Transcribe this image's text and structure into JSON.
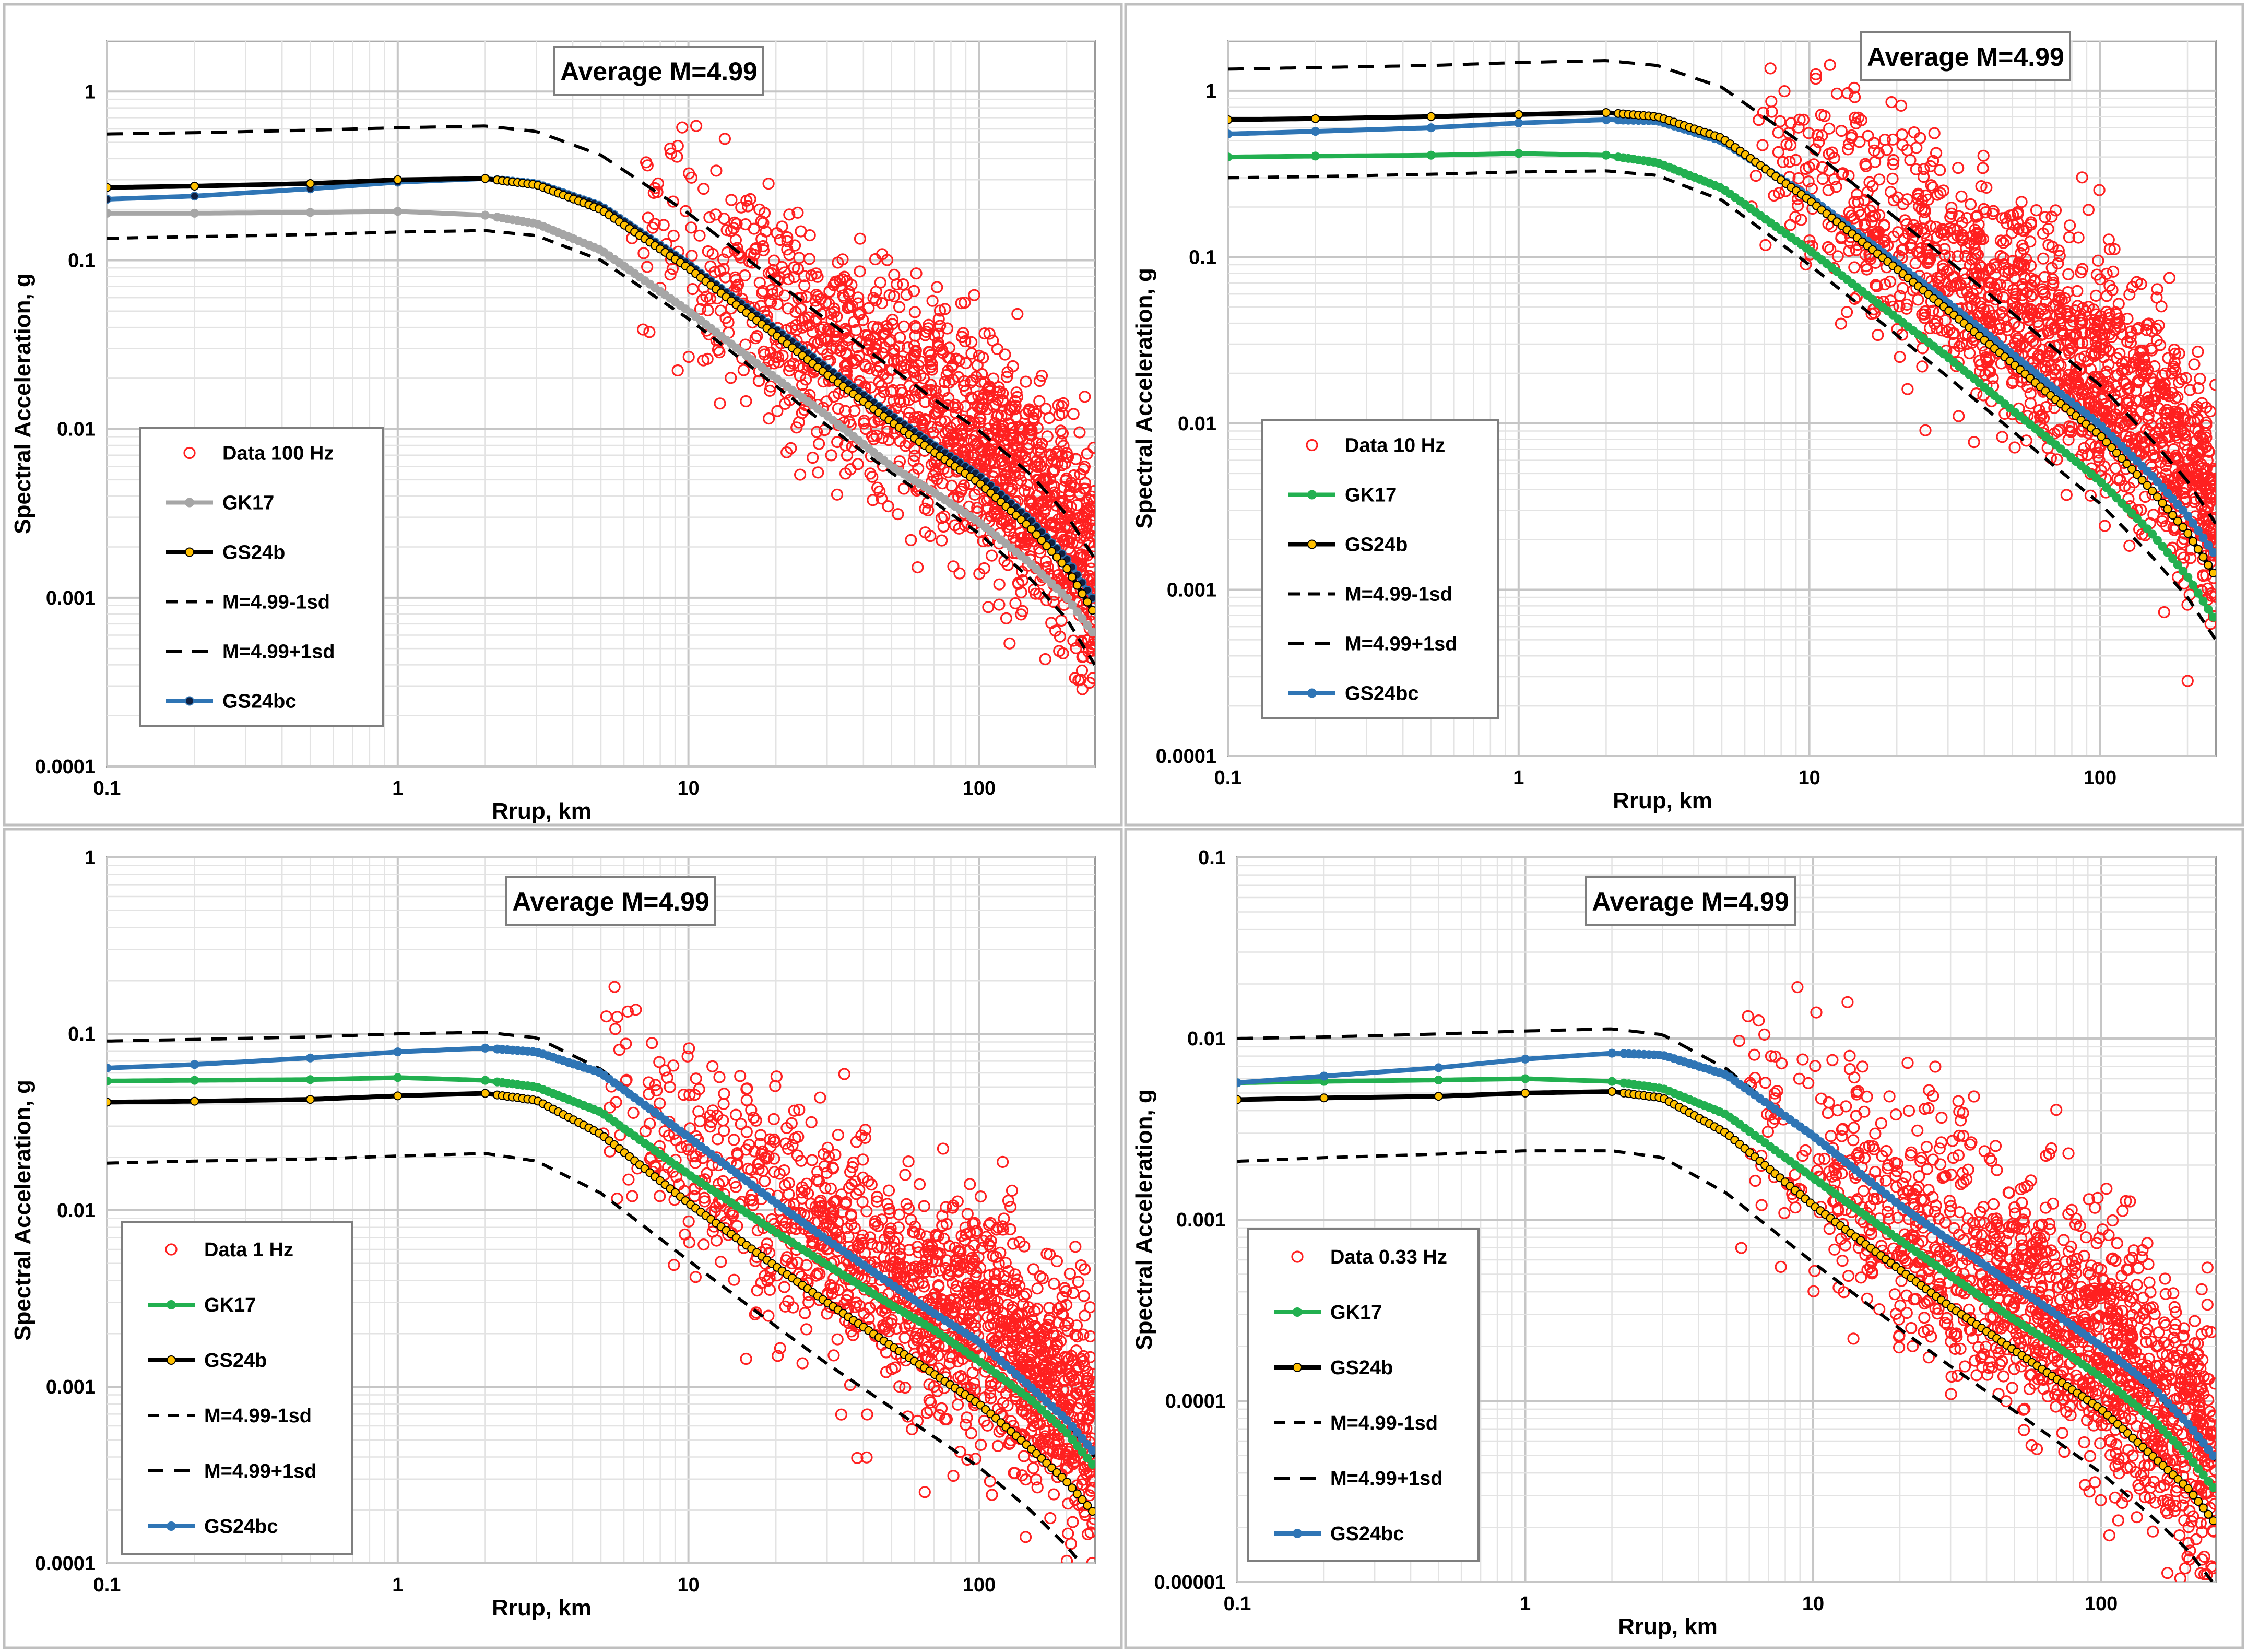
{
  "figure": {
    "title": "Spectral acceleration versus rupture distance, four frequencies"
  },
  "colors": {
    "data": "#ff2020",
    "GK17_100": "#a6a6a6",
    "GK17": "#22b050",
    "GS24b": "#000000",
    "GS24b_marker": "#ffc000",
    "GS24bc": "#2f75b5",
    "sd": "#000000"
  },
  "chart_data": [
    {
      "type": "scatter",
      "title": "Average M=4.99",
      "xlabel": "Rrup, km",
      "ylabel": "Spectral Acceleration, g",
      "xscale": "log",
      "yscale": "log",
      "xlim": [
        0.1,
        250
      ],
      "ylim": [
        0.0001,
        2
      ],
      "x_tick_labels": [
        "0.1",
        "1",
        "10",
        "100"
      ],
      "y_tick_labels": [
        "0.0001",
        "0.001",
        "0.01",
        "0.1",
        "1"
      ],
      "legend_position": "lower-left",
      "legend": [
        "Data 100 Hz",
        "GK17",
        "GS24b",
        "M=4.99-1sd",
        "M=4.99+1sd",
        "GS24bc"
      ],
      "series": [
        {
          "name": "Data 100 Hz",
          "style": "open-circle",
          "color": "#ff2020",
          "n_points": 1350,
          "description_points": {
            "x_range": [
              6,
              250
            ],
            "trend_center_at_10km": 0.12,
            "trend_center_at_100km": 0.008,
            "scatter_sigma_log10": 0.35
          }
        },
        {
          "name": "GK17",
          "style": "line-marker",
          "color": "#a6a6a6",
          "x": [
            0.1,
            0.2,
            0.5,
            1,
            2,
            3,
            5,
            10,
            20,
            30,
            50,
            70,
            100,
            150,
            200,
            250
          ],
          "y": [
            0.19,
            0.19,
            0.192,
            0.195,
            0.185,
            0.165,
            0.115,
            0.05,
            0.02,
            0.012,
            0.006,
            0.0042,
            0.0028,
            0.0016,
            0.001,
            0.0006
          ]
        },
        {
          "name": "GS24b",
          "style": "line-marker",
          "color": "#000000",
          "marker": "#ffc000",
          "x": [
            0.1,
            0.2,
            0.5,
            1,
            2,
            3,
            5,
            10,
            20,
            30,
            50,
            70,
            100,
            150,
            200,
            250
          ],
          "y": [
            0.27,
            0.275,
            0.285,
            0.3,
            0.305,
            0.28,
            0.2,
            0.09,
            0.036,
            0.021,
            0.011,
            0.0073,
            0.0048,
            0.0026,
            0.0015,
            0.0008
          ]
        },
        {
          "name": "M=4.99-1sd",
          "style": "dash",
          "color": "#000000",
          "x": [
            0.1,
            0.2,
            0.5,
            1,
            2,
            3,
            5,
            10,
            20,
            30,
            50,
            70,
            100,
            150,
            200,
            250
          ],
          "y": [
            0.135,
            0.138,
            0.142,
            0.147,
            0.15,
            0.14,
            0.1,
            0.045,
            0.018,
            0.0105,
            0.0055,
            0.0037,
            0.0024,
            0.0013,
            0.00075,
            0.0004
          ]
        },
        {
          "name": "M=4.99+1sd",
          "style": "dash",
          "color": "#000000",
          "x": [
            0.1,
            0.2,
            0.5,
            1,
            2,
            3,
            5,
            10,
            20,
            30,
            50,
            70,
            100,
            150,
            200,
            250
          ],
          "y": [
            0.56,
            0.57,
            0.59,
            0.61,
            0.625,
            0.58,
            0.42,
            0.19,
            0.075,
            0.044,
            0.023,
            0.015,
            0.0098,
            0.0054,
            0.0031,
            0.0017
          ]
        },
        {
          "name": "GS24bc",
          "style": "line-marker",
          "color": "#2f75b5",
          "marker": "#102040",
          "x": [
            0.1,
            0.2,
            0.5,
            1,
            2,
            3,
            5,
            10,
            20,
            30,
            50,
            70,
            100,
            150,
            200,
            250
          ],
          "y": [
            0.23,
            0.24,
            0.265,
            0.29,
            0.305,
            0.285,
            0.21,
            0.095,
            0.039,
            0.023,
            0.012,
            0.008,
            0.0053,
            0.0029,
            0.0017,
            0.00095
          ]
        }
      ]
    },
    {
      "type": "scatter",
      "title": "Average M=4.99",
      "xlabel": "Rrup, km",
      "ylabel": "Spectral Acceleration, g",
      "xscale": "log",
      "yscale": "log",
      "xlim": [
        0.1,
        250
      ],
      "ylim": [
        0.0001,
        2
      ],
      "x_tick_labels": [
        "0.1",
        "1",
        "10",
        "100"
      ],
      "y_tick_labels": [
        "0.0001",
        "0.001",
        "0.01",
        "0.1",
        "1"
      ],
      "legend_position": "lower-left",
      "legend": [
        "Data 10 Hz",
        "GK17",
        "GS24b",
        "M=4.99-1sd",
        "M=4.99+1sd",
        "GS24bc"
      ],
      "series": [
        {
          "name": "Data 10 Hz",
          "style": "open-circle",
          "color": "#ff2020",
          "n_points": 1400,
          "description_points": {
            "x_range": [
              6,
              250
            ],
            "trend_center_at_10km": 0.3,
            "trend_center_at_100km": 0.02,
            "scatter_sigma_log10": 0.35
          }
        },
        {
          "name": "GK17",
          "style": "line-marker",
          "color": "#22b050",
          "x": [
            0.1,
            0.2,
            0.5,
            1,
            2,
            3,
            5,
            10,
            20,
            30,
            50,
            70,
            100,
            150,
            200,
            250
          ],
          "y": [
            0.4,
            0.405,
            0.41,
            0.42,
            0.41,
            0.37,
            0.26,
            0.11,
            0.043,
            0.025,
            0.012,
            0.0075,
            0.0045,
            0.0022,
            0.0012,
            0.00065
          ]
        },
        {
          "name": "GS24b",
          "style": "line-marker",
          "color": "#000000",
          "marker": "#ffc000",
          "x": [
            0.1,
            0.2,
            0.5,
            1,
            2,
            3,
            5,
            10,
            20,
            30,
            50,
            70,
            100,
            150,
            200,
            250
          ],
          "y": [
            0.67,
            0.68,
            0.7,
            0.72,
            0.74,
            0.7,
            0.52,
            0.22,
            0.085,
            0.048,
            0.023,
            0.014,
            0.0085,
            0.004,
            0.0022,
            0.0012
          ]
        },
        {
          "name": "M=4.99-1sd",
          "style": "dash",
          "color": "#000000",
          "x": [
            0.1,
            0.2,
            0.5,
            1,
            2,
            3,
            5,
            10,
            20,
            30,
            50,
            70,
            100,
            150,
            200,
            250
          ],
          "y": [
            0.3,
            0.305,
            0.315,
            0.325,
            0.33,
            0.31,
            0.22,
            0.09,
            0.034,
            0.019,
            0.009,
            0.0055,
            0.0033,
            0.0016,
            0.0009,
            0.0005
          ]
        },
        {
          "name": "M=4.99+1sd",
          "style": "dash",
          "color": "#000000",
          "x": [
            0.1,
            0.2,
            0.5,
            1,
            2,
            3,
            5,
            10,
            20,
            30,
            50,
            70,
            100,
            150,
            200,
            250
          ],
          "y": [
            1.35,
            1.38,
            1.42,
            1.48,
            1.52,
            1.42,
            1.05,
            0.45,
            0.17,
            0.096,
            0.046,
            0.028,
            0.017,
            0.008,
            0.0045,
            0.0025
          ]
        },
        {
          "name": "GS24bc",
          "style": "line-marker",
          "color": "#2f75b5",
          "marker": "#2f75b5",
          "x": [
            0.1,
            0.2,
            0.5,
            1,
            2,
            3,
            5,
            10,
            20,
            30,
            50,
            70,
            100,
            150,
            200,
            250
          ],
          "y": [
            0.55,
            0.57,
            0.6,
            0.64,
            0.67,
            0.66,
            0.5,
            0.23,
            0.092,
            0.053,
            0.026,
            0.016,
            0.0098,
            0.0049,
            0.0028,
            0.0016
          ]
        }
      ]
    },
    {
      "type": "scatter",
      "title": "Average M=4.99",
      "xlabel": "Rrup, km",
      "ylabel": "Spectral Acceleration, g",
      "xscale": "log",
      "yscale": "log",
      "xlim": [
        0.1,
        250
      ],
      "ylim": [
        0.0001,
        1
      ],
      "x_tick_labels": [
        "0.1",
        "1",
        "10",
        "100"
      ],
      "y_tick_labels": [
        "0.0001",
        "0.001",
        "0.01",
        "0.1",
        "1"
      ],
      "legend_position": "lower-left",
      "legend": [
        "Data 1 Hz",
        "GK17",
        "GS24b",
        "M=4.99-1sd",
        "M=4.99+1sd",
        "GS24bc"
      ],
      "series": [
        {
          "name": "Data 1 Hz",
          "style": "open-circle",
          "color": "#ff2020",
          "n_points": 1400,
          "description_points": {
            "x_range": [
              5,
              250
            ],
            "trend_center_at_10km": 0.022,
            "trend_center_at_100km": 0.0022,
            "scatter_sigma_log10": 0.33
          }
        },
        {
          "name": "GK17",
          "style": "line-marker",
          "color": "#22b050",
          "x": [
            0.1,
            0.2,
            0.5,
            1,
            2,
            3,
            5,
            10,
            20,
            30,
            50,
            70,
            100,
            150,
            200,
            250
          ],
          "y": [
            0.054,
            0.0545,
            0.055,
            0.0565,
            0.0545,
            0.05,
            0.036,
            0.016,
            0.0075,
            0.0049,
            0.0029,
            0.0021,
            0.0014,
            0.00085,
            0.00055,
            0.00035
          ]
        },
        {
          "name": "GS24b",
          "style": "line-marker",
          "color": "#000000",
          "marker": "#ffc000",
          "x": [
            0.1,
            0.2,
            0.5,
            1,
            2,
            3,
            5,
            10,
            20,
            30,
            50,
            70,
            100,
            150,
            200,
            250
          ],
          "y": [
            0.041,
            0.0415,
            0.0425,
            0.0445,
            0.046,
            0.042,
            0.027,
            0.011,
            0.0048,
            0.003,
            0.0017,
            0.00118,
            0.0008,
            0.00045,
            0.00029,
            0.00019
          ]
        },
        {
          "name": "M=4.99-1sd",
          "style": "dash",
          "color": "#000000",
          "x": [
            0.1,
            0.2,
            0.5,
            1,
            2,
            3,
            5,
            10,
            20,
            30,
            50,
            70,
            100,
            150,
            200,
            250
          ],
          "y": [
            0.0185,
            0.019,
            0.0195,
            0.0203,
            0.021,
            0.019,
            0.0125,
            0.0052,
            0.0022,
            0.00135,
            0.00076,
            0.00052,
            0.00035,
            0.0002,
            0.000125,
            8e-05
          ]
        },
        {
          "name": "M=4.99+1sd",
          "style": "dash",
          "color": "#000000",
          "x": [
            0.1,
            0.2,
            0.5,
            1,
            2,
            3,
            5,
            10,
            20,
            30,
            50,
            70,
            100,
            150,
            200,
            250
          ],
          "y": [
            0.091,
            0.093,
            0.096,
            0.1,
            0.102,
            0.095,
            0.063,
            0.026,
            0.011,
            0.0068,
            0.0038,
            0.0026,
            0.00175,
            0.001,
            0.00063,
            0.0004
          ]
        },
        {
          "name": "GS24bc",
          "style": "line-marker",
          "color": "#2f75b5",
          "marker": "#2f75b5",
          "x": [
            0.1,
            0.2,
            0.5,
            1,
            2,
            3,
            5,
            10,
            20,
            30,
            50,
            70,
            100,
            150,
            200,
            250
          ],
          "y": [
            0.064,
            0.067,
            0.073,
            0.079,
            0.083,
            0.079,
            0.06,
            0.026,
            0.011,
            0.0068,
            0.0038,
            0.0026,
            0.0018,
            0.001,
            0.00065,
            0.00042
          ]
        }
      ]
    },
    {
      "type": "scatter",
      "title": "Average M=4.99",
      "xlabel": "Rrup, km",
      "ylabel": "Spectral Acceleration, g",
      "xscale": "log",
      "yscale": "log",
      "xlim": [
        0.1,
        250
      ],
      "ylim": [
        1e-05,
        0.1
      ],
      "x_tick_labels": [
        "0.1",
        "1",
        "10",
        "100"
      ],
      "y_tick_labels": [
        "0.00001",
        "0.0001",
        "0.001",
        "0.01",
        "0.1"
      ],
      "legend_position": "lower-left",
      "legend": [
        "Data 0.33 Hz",
        "GK17",
        "GS24b",
        "M=4.99-1sd",
        "M=4.99+1sd",
        "GS24bc"
      ],
      "series": [
        {
          "name": "Data 0.33 Hz",
          "style": "open-circle",
          "color": "#ff2020",
          "n_points": 1400,
          "description_points": {
            "x_range": [
              5,
              250
            ],
            "trend_center_at_10km": 0.0022,
            "trend_center_at_100km": 0.0002,
            "scatter_sigma_log10": 0.35
          }
        },
        {
          "name": "GK17",
          "style": "line-marker",
          "color": "#22b050",
          "x": [
            0.1,
            0.2,
            0.5,
            1,
            2,
            3,
            5,
            10,
            20,
            30,
            50,
            70,
            100,
            150,
            200,
            250
          ],
          "y": [
            0.0057,
            0.0058,
            0.0059,
            0.006,
            0.0058,
            0.0053,
            0.0038,
            0.0017,
            0.00077,
            0.00049,
            0.00028,
            0.0002,
            0.000135,
            8e-05,
            5e-05,
            3.2e-05
          ]
        },
        {
          "name": "GS24b",
          "style": "line-marker",
          "color": "#000000",
          "marker": "#ffc000",
          "x": [
            0.1,
            0.2,
            0.5,
            1,
            2,
            3,
            5,
            10,
            20,
            30,
            50,
            70,
            100,
            150,
            200,
            250
          ],
          "y": [
            0.0046,
            0.0047,
            0.0048,
            0.005,
            0.0051,
            0.0047,
            0.003,
            0.0012,
            0.00053,
            0.00033,
            0.00019,
            0.000132,
            9e-05,
            5e-05,
            3.3e-05,
            2.1e-05
          ]
        },
        {
          "name": "M=4.99-1sd",
          "style": "dash",
          "color": "#000000",
          "x": [
            0.1,
            0.2,
            0.5,
            1,
            2,
            3,
            5,
            10,
            20,
            30,
            50,
            70,
            100,
            150,
            200,
            250
          ],
          "y": [
            0.0021,
            0.0022,
            0.0023,
            0.0024,
            0.0024,
            0.0022,
            0.0014,
            0.00058,
            0.00025,
            0.000155,
            8.8e-05,
            6e-05,
            4e-05,
            2.3e-05,
            1.5e-05,
            9.5e-06
          ]
        },
        {
          "name": "M=4.99+1sd",
          "style": "dash",
          "color": "#000000",
          "x": [
            0.1,
            0.2,
            0.5,
            1,
            2,
            3,
            5,
            10,
            20,
            30,
            50,
            70,
            100,
            150,
            200,
            250
          ],
          "y": [
            0.01,
            0.0102,
            0.0106,
            0.011,
            0.0113,
            0.0105,
            0.0068,
            0.0028,
            0.0012,
            0.00075,
            0.00042,
            0.00029,
            0.0002,
            0.000115,
            7.3e-05,
            4.7e-05
          ]
        },
        {
          "name": "GS24bc",
          "style": "line-marker",
          "color": "#2f75b5",
          "marker": "#2f75b5",
          "x": [
            0.1,
            0.2,
            0.5,
            1,
            2,
            3,
            5,
            10,
            20,
            30,
            50,
            70,
            100,
            150,
            200,
            250
          ],
          "y": [
            0.0057,
            0.0062,
            0.0069,
            0.0077,
            0.0083,
            0.0081,
            0.0063,
            0.0029,
            0.0012,
            0.00076,
            0.00043,
            0.0003,
            0.0002,
            0.00012,
            7.5e-05,
            4.8e-05
          ]
        }
      ]
    }
  ]
}
